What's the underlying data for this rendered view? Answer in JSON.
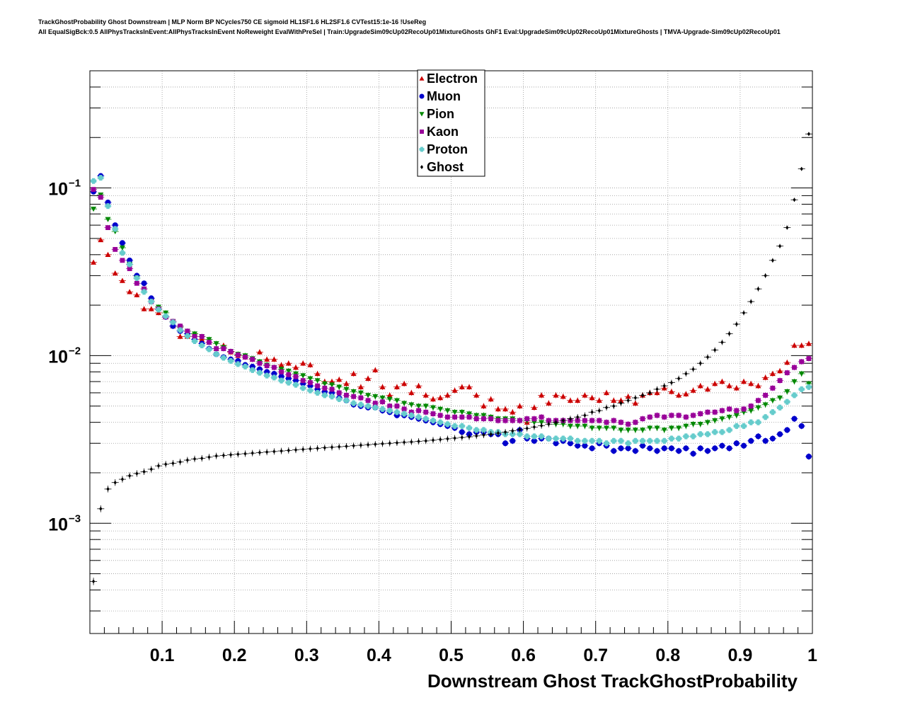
{
  "chart_data": {
    "type": "scatter",
    "title_lines": [
      "TrackGhostProbability Ghost Downstream | MLP Norm BP NCycles750 CE sigmoid HL1SF1.6 HL2SF1.6 CVTest15:1e-16 !UseReg",
      "All EqualSigBck:0.5 AllPhysTracksInEvent:AllPhysTracksInEvent NoReweight EvalWithPreSel | Train:UpgradeSim09cUp02RecoUp01MixtureGhosts GhF1 Eval:UpgradeSim09cUp02RecoUp01MixtureGhosts | TMVA-Upgrade-Sim09cUp02RecoUp01"
    ],
    "xlabel": "Downstream Ghost TrackGhostProbability",
    "ylabel": "",
    "xlim": [
      0,
      1
    ],
    "ylim": [
      0.00022,
      0.5
    ],
    "y_scale": "log",
    "grid": true,
    "legend_position": "top-center",
    "x_ticks": [
      {
        "value": 0.1,
        "label": "0.1"
      },
      {
        "value": 0.2,
        "label": "0.2"
      },
      {
        "value": 0.3,
        "label": "0.3"
      },
      {
        "value": 0.4,
        "label": "0.4"
      },
      {
        "value": 0.5,
        "label": "0.5"
      },
      {
        "value": 0.6,
        "label": "0.6"
      },
      {
        "value": 0.7,
        "label": "0.7"
      },
      {
        "value": 0.8,
        "label": "0.8"
      },
      {
        "value": 0.9,
        "label": "0.9"
      },
      {
        "value": 1.0,
        "label": "1"
      }
    ],
    "y_ticks": [
      {
        "value": 0.001,
        "base": "10",
        "exp": "−3"
      },
      {
        "value": 0.01,
        "base": "10",
        "exp": "−2"
      },
      {
        "value": 0.1,
        "base": "10",
        "exp": "−1"
      }
    ],
    "x": [
      0.005,
      0.015,
      0.025,
      0.035,
      0.045,
      0.055,
      0.065,
      0.075,
      0.085,
      0.095,
      0.105,
      0.115,
      0.125,
      0.135,
      0.145,
      0.155,
      0.165,
      0.175,
      0.185,
      0.195,
      0.205,
      0.215,
      0.225,
      0.235,
      0.245,
      0.255,
      0.265,
      0.275,
      0.285,
      0.295,
      0.305,
      0.315,
      0.325,
      0.335,
      0.345,
      0.355,
      0.365,
      0.375,
      0.385,
      0.395,
      0.405,
      0.415,
      0.425,
      0.435,
      0.445,
      0.455,
      0.465,
      0.475,
      0.485,
      0.495,
      0.505,
      0.515,
      0.525,
      0.535,
      0.545,
      0.555,
      0.565,
      0.575,
      0.585,
      0.595,
      0.605,
      0.615,
      0.625,
      0.635,
      0.645,
      0.655,
      0.665,
      0.675,
      0.685,
      0.695,
      0.705,
      0.715,
      0.725,
      0.735,
      0.745,
      0.755,
      0.765,
      0.775,
      0.785,
      0.795,
      0.805,
      0.815,
      0.825,
      0.835,
      0.845,
      0.855,
      0.865,
      0.875,
      0.885,
      0.895,
      0.905,
      0.915,
      0.925,
      0.935,
      0.945,
      0.955,
      0.965,
      0.975,
      0.985,
      0.995
    ],
    "series": [
      {
        "name": "Electron",
        "color": "#cc0000",
        "marker": "triangle-up",
        "error_bars": true,
        "values": [
          0.036,
          0.049,
          0.04,
          0.031,
          0.028,
          0.024,
          0.023,
          0.019,
          0.019,
          0.018,
          0.017,
          0.015,
          0.013,
          0.013,
          0.0135,
          0.0125,
          0.012,
          0.011,
          0.0115,
          0.0105,
          0.01,
          0.0098,
          0.0095,
          0.0105,
          0.0095,
          0.0095,
          0.0088,
          0.009,
          0.0085,
          0.009,
          0.0088,
          0.0078,
          0.007,
          0.007,
          0.0072,
          0.0068,
          0.0078,
          0.0065,
          0.0073,
          0.0082,
          0.0065,
          0.0058,
          0.0065,
          0.0068,
          0.006,
          0.0066,
          0.0058,
          0.0055,
          0.0056,
          0.0058,
          0.0062,
          0.0065,
          0.0065,
          0.0058,
          0.005,
          0.0055,
          0.0048,
          0.0048,
          0.0046,
          0.005,
          0.004,
          0.0049,
          0.0058,
          0.0052,
          0.0058,
          0.0057,
          0.0054,
          0.0054,
          0.0058,
          0.0056,
          0.0054,
          0.006,
          0.0054,
          0.0054,
          0.0057,
          0.0052,
          0.0058,
          0.006,
          0.006,
          0.0064,
          0.0061,
          0.0058,
          0.0059,
          0.0062,
          0.0066,
          0.0063,
          0.0068,
          0.007,
          0.0066,
          0.0064,
          0.007,
          0.0068,
          0.0066,
          0.0074,
          0.0078,
          0.0081,
          0.0091,
          0.0115,
          0.0115,
          0.0118
        ]
      },
      {
        "name": "Muon",
        "color": "#0000cc",
        "marker": "circle",
        "error_bars": true,
        "values": [
          0.095,
          0.118,
          0.082,
          0.06,
          0.047,
          0.037,
          0.03,
          0.027,
          0.022,
          0.019,
          0.017,
          0.015,
          0.014,
          0.0135,
          0.0125,
          0.0118,
          0.011,
          0.0102,
          0.0098,
          0.0095,
          0.0093,
          0.0088,
          0.0086,
          0.0083,
          0.008,
          0.0078,
          0.0075,
          0.0073,
          0.0071,
          0.0068,
          0.0066,
          0.0063,
          0.0061,
          0.006,
          0.0056,
          0.0054,
          0.0051,
          0.005,
          0.0049,
          0.0049,
          0.0047,
          0.0046,
          0.0044,
          0.0044,
          0.0043,
          0.0042,
          0.0041,
          0.004,
          0.0039,
          0.0038,
          0.0037,
          0.0035,
          0.0034,
          0.0035,
          0.0035,
          0.0034,
          0.0034,
          0.003,
          0.0031,
          0.0036,
          0.0032,
          0.0031,
          0.0032,
          0.0032,
          0.003,
          0.0031,
          0.003,
          0.0029,
          0.0029,
          0.0028,
          0.003,
          0.0029,
          0.0027,
          0.0028,
          0.0028,
          0.0027,
          0.0029,
          0.0028,
          0.0027,
          0.0028,
          0.0028,
          0.0027,
          0.0028,
          0.0026,
          0.0028,
          0.0027,
          0.0028,
          0.0029,
          0.0028,
          0.003,
          0.0029,
          0.0031,
          0.0033,
          0.0031,
          0.0032,
          0.0034,
          0.0036,
          0.0042,
          0.0038,
          0.0025
        ]
      },
      {
        "name": "Pion",
        "color": "#008800",
        "marker": "triangle-down",
        "error_bars": true,
        "values": [
          0.075,
          0.091,
          0.065,
          0.055,
          0.044,
          0.035,
          0.029,
          0.025,
          0.021,
          0.0195,
          0.018,
          0.016,
          0.0148,
          0.014,
          0.0135,
          0.013,
          0.0125,
          0.0118,
          0.0112,
          0.0106,
          0.0102,
          0.01,
          0.0096,
          0.0092,
          0.0088,
          0.0085,
          0.0083,
          0.0081,
          0.0078,
          0.0076,
          0.0073,
          0.0071,
          0.0068,
          0.0067,
          0.0065,
          0.0063,
          0.0061,
          0.006,
          0.0058,
          0.0057,
          0.0056,
          0.0055,
          0.0054,
          0.0052,
          0.0051,
          0.005,
          0.005,
          0.0049,
          0.0048,
          0.0047,
          0.0046,
          0.0046,
          0.0045,
          0.0044,
          0.0044,
          0.0043,
          0.0042,
          0.0042,
          0.0042,
          0.0041,
          0.0041,
          0.004,
          0.004,
          0.004,
          0.0039,
          0.0039,
          0.0038,
          0.0038,
          0.0038,
          0.0037,
          0.0037,
          0.0037,
          0.0037,
          0.0036,
          0.0036,
          0.0036,
          0.0036,
          0.0037,
          0.0037,
          0.0036,
          0.0037,
          0.0037,
          0.0038,
          0.0039,
          0.0039,
          0.004,
          0.0041,
          0.0042,
          0.0043,
          0.0044,
          0.0046,
          0.0047,
          0.0049,
          0.0051,
          0.0054,
          0.0056,
          0.0061,
          0.007,
          0.0078,
          0.0068
        ]
      },
      {
        "name": "Kaon",
        "color": "#990099",
        "marker": "square",
        "error_bars": true,
        "values": [
          0.098,
          0.088,
          0.058,
          0.043,
          0.037,
          0.033,
          0.027,
          0.025,
          0.021,
          0.019,
          0.017,
          0.016,
          0.015,
          0.014,
          0.013,
          0.013,
          0.012,
          0.011,
          0.011,
          0.0106,
          0.0101,
          0.0098,
          0.0095,
          0.009,
          0.0087,
          0.0085,
          0.008,
          0.0077,
          0.0075,
          0.0071,
          0.0069,
          0.0066,
          0.0064,
          0.0063,
          0.006,
          0.0058,
          0.0057,
          0.0056,
          0.0054,
          0.0052,
          0.0053,
          0.005,
          0.005,
          0.0048,
          0.0046,
          0.0047,
          0.0046,
          0.0045,
          0.0044,
          0.0043,
          0.0043,
          0.0043,
          0.0043,
          0.0042,
          0.0042,
          0.0042,
          0.0041,
          0.0041,
          0.0041,
          0.0041,
          0.0042,
          0.0042,
          0.0043,
          0.0041,
          0.0041,
          0.0041,
          0.0041,
          0.0041,
          0.0041,
          0.0041,
          0.0041,
          0.004,
          0.0041,
          0.004,
          0.0039,
          0.004,
          0.0042,
          0.0043,
          0.0044,
          0.0043,
          0.0044,
          0.0044,
          0.0043,
          0.0044,
          0.0045,
          0.0046,
          0.0046,
          0.0047,
          0.0048,
          0.0047,
          0.0048,
          0.005,
          0.0054,
          0.0058,
          0.0064,
          0.0071,
          0.0079,
          0.0085,
          0.0092,
          0.0096
        ]
      },
      {
        "name": "Proton",
        "color": "#66cccc",
        "marker": "cross",
        "error_bars": true,
        "values": [
          0.11,
          0.115,
          0.078,
          0.057,
          0.041,
          0.035,
          0.029,
          0.024,
          0.021,
          0.0188,
          0.0172,
          0.0158,
          0.0142,
          0.0131,
          0.0122,
          0.0115,
          0.0109,
          0.0102,
          0.0097,
          0.0093,
          0.0089,
          0.0086,
          0.0082,
          0.0079,
          0.0076,
          0.0074,
          0.0071,
          0.0069,
          0.0067,
          0.0064,
          0.0062,
          0.006,
          0.0058,
          0.0057,
          0.0055,
          0.0054,
          0.0052,
          0.0051,
          0.005,
          0.0049,
          0.0048,
          0.0047,
          0.0046,
          0.0045,
          0.0044,
          0.0043,
          0.0042,
          0.0041,
          0.004,
          0.0039,
          0.0038,
          0.0038,
          0.0037,
          0.0036,
          0.0036,
          0.0035,
          0.0035,
          0.0034,
          0.0034,
          0.0034,
          0.0033,
          0.0033,
          0.0033,
          0.0032,
          0.0032,
          0.0032,
          0.0032,
          0.0031,
          0.0031,
          0.0031,
          0.0031,
          0.003,
          0.0031,
          0.0031,
          0.003,
          0.0031,
          0.0031,
          0.0031,
          0.0031,
          0.0031,
          0.0032,
          0.0032,
          0.0033,
          0.0033,
          0.0034,
          0.0034,
          0.0035,
          0.0035,
          0.0036,
          0.0038,
          0.0038,
          0.004,
          0.004,
          0.0043,
          0.0046,
          0.0049,
          0.0053,
          0.0058,
          0.0063,
          0.0065
        ]
      },
      {
        "name": "Ghost",
        "color": "#000000",
        "marker": "diamond",
        "error_bars": true,
        "values": [
          0.00045,
          0.00122,
          0.0016,
          0.00175,
          0.00183,
          0.00192,
          0.00198,
          0.00203,
          0.0021,
          0.0022,
          0.00225,
          0.00228,
          0.00232,
          0.00238,
          0.00242,
          0.00244,
          0.00248,
          0.00252,
          0.00254,
          0.00256,
          0.00258,
          0.0026,
          0.00262,
          0.00264,
          0.00266,
          0.00268,
          0.0027,
          0.00272,
          0.00274,
          0.00276,
          0.00278,
          0.0028,
          0.00282,
          0.00284,
          0.00286,
          0.00288,
          0.0029,
          0.00292,
          0.00294,
          0.00296,
          0.00298,
          0.003,
          0.00302,
          0.00304,
          0.00306,
          0.00308,
          0.0031,
          0.00313,
          0.00316,
          0.00319,
          0.00322,
          0.00325,
          0.00328,
          0.00332,
          0.00336,
          0.0034,
          0.00345,
          0.0035,
          0.00356,
          0.00362,
          0.00368,
          0.00375,
          0.00382,
          0.0039,
          0.004,
          0.0041,
          0.0042,
          0.0043,
          0.0044,
          0.0046,
          0.0047,
          0.0049,
          0.005,
          0.0052,
          0.0054,
          0.0056,
          0.0058,
          0.006,
          0.0063,
          0.0066,
          0.0069,
          0.0073,
          0.0078,
          0.0083,
          0.009,
          0.0098,
          0.0108,
          0.012,
          0.0135,
          0.0154,
          0.018,
          0.021,
          0.025,
          0.03,
          0.037,
          0.045,
          0.058,
          0.085,
          0.13,
          0.21
        ]
      }
    ]
  }
}
